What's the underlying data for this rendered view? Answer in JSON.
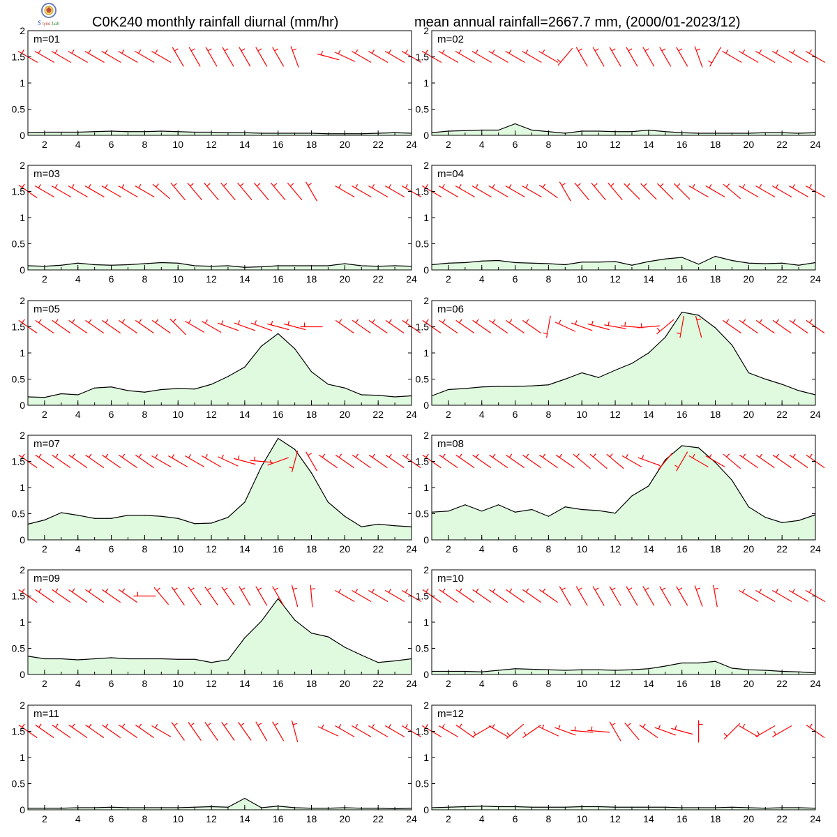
{
  "header": {
    "title_left": "C0K240 monthly rainfall diurnal (mm/hr)",
    "title_right": "mean annual rainfall=2667.7 mm, (2000/01-2023/12)",
    "logo_text": "Lab"
  },
  "colors": {
    "fill": "#e0fae0",
    "line": "#000000",
    "wind": "#ff0000"
  },
  "chart_data": [
    {
      "type": "area",
      "label": "m=01",
      "x": [
        1,
        2,
        3,
        4,
        5,
        6,
        7,
        8,
        9,
        10,
        11,
        12,
        13,
        14,
        15,
        16,
        17,
        18,
        19,
        20,
        21,
        22,
        23,
        24
      ],
      "values": [
        0.05,
        0.06,
        0.06,
        0.06,
        0.07,
        0.08,
        0.07,
        0.07,
        0.08,
        0.07,
        0.06,
        0.06,
        0.05,
        0.05,
        0.04,
        0.04,
        0.04,
        0.04,
        0.03,
        0.03,
        0.03,
        0.04,
        0.05,
        0.04
      ],
      "xlim": [
        1,
        24
      ],
      "ylim": [
        0,
        2
      ],
      "xticks": [
        2,
        4,
        6,
        8,
        10,
        12,
        14,
        16,
        18,
        20,
        22,
        24
      ],
      "yticks": [
        0,
        0.5,
        1,
        1.5,
        2
      ],
      "wind_dirs": [
        300,
        300,
        300,
        300,
        300,
        300,
        300,
        300,
        300,
        330,
        330,
        330,
        330,
        330,
        330,
        330,
        340,
        null,
        285,
        295,
        300,
        300,
        300,
        300
      ]
    },
    {
      "type": "area",
      "label": "m=02",
      "x": [
        1,
        2,
        3,
        4,
        5,
        6,
        7,
        8,
        9,
        10,
        11,
        12,
        13,
        14,
        15,
        16,
        17,
        18,
        19,
        20,
        21,
        22,
        23,
        24
      ],
      "values": [
        0.05,
        0.08,
        0.09,
        0.1,
        0.1,
        0.22,
        0.1,
        0.07,
        0.04,
        0.08,
        0.08,
        0.07,
        0.07,
        0.1,
        0.07,
        0.05,
        0.04,
        0.04,
        0.04,
        0.04,
        0.05,
        0.05,
        0.04,
        0.05
      ],
      "xlim": [
        1,
        24
      ],
      "ylim": [
        0,
        2
      ],
      "xticks": [
        2,
        4,
        6,
        8,
        10,
        12,
        14,
        16,
        18,
        20,
        22,
        24
      ],
      "yticks": [
        0,
        0.5,
        1,
        1.5,
        2
      ],
      "wind_dirs": [
        300,
        300,
        300,
        300,
        300,
        300,
        300,
        300,
        220,
        330,
        330,
        330,
        330,
        330,
        330,
        330,
        340,
        210,
        300,
        300,
        300,
        300,
        300,
        300
      ]
    },
    {
      "type": "area",
      "label": "m=03",
      "x": [
        1,
        2,
        3,
        4,
        5,
        6,
        7,
        8,
        9,
        10,
        11,
        12,
        13,
        14,
        15,
        16,
        17,
        18,
        19,
        20,
        21,
        22,
        23,
        24
      ],
      "values": [
        0.08,
        0.07,
        0.09,
        0.13,
        0.1,
        0.09,
        0.1,
        0.12,
        0.14,
        0.13,
        0.08,
        0.07,
        0.08,
        0.05,
        0.06,
        0.08,
        0.08,
        0.08,
        0.08,
        0.12,
        0.08,
        0.07,
        0.08,
        0.07
      ],
      "xlim": [
        1,
        24
      ],
      "ylim": [
        0,
        2
      ],
      "xticks": [
        2,
        4,
        6,
        8,
        10,
        12,
        14,
        16,
        18,
        20,
        22,
        24
      ],
      "yticks": [
        0,
        0.5,
        1,
        1.5,
        2
      ],
      "wind_dirs": [
        305,
        300,
        300,
        300,
        300,
        300,
        300,
        300,
        310,
        320,
        320,
        320,
        320,
        320,
        320,
        320,
        320,
        330,
        null,
        300,
        300,
        300,
        300,
        300
      ]
    },
    {
      "type": "area",
      "label": "m=04",
      "x": [
        1,
        2,
        3,
        4,
        5,
        6,
        7,
        8,
        9,
        10,
        11,
        12,
        13,
        14,
        15,
        16,
        17,
        18,
        19,
        20,
        21,
        22,
        23,
        24
      ],
      "values": [
        0.1,
        0.13,
        0.14,
        0.17,
        0.18,
        0.14,
        0.13,
        0.12,
        0.1,
        0.15,
        0.15,
        0.16,
        0.09,
        0.16,
        0.21,
        0.24,
        0.11,
        0.26,
        0.18,
        0.13,
        0.12,
        0.13,
        0.09,
        0.14
      ],
      "xlim": [
        1,
        24
      ],
      "ylim": [
        0,
        2
      ],
      "xticks": [
        2,
        4,
        6,
        8,
        10,
        12,
        14,
        16,
        18,
        20,
        22,
        24
      ],
      "yticks": [
        0,
        0.5,
        1,
        1.5,
        2
      ],
      "wind_dirs": [
        300,
        300,
        300,
        300,
        300,
        300,
        300,
        305,
        330,
        320,
        320,
        320,
        315,
        315,
        315,
        315,
        300,
        300,
        310,
        300,
        300,
        300,
        300,
        300
      ]
    },
    {
      "type": "area",
      "label": "m=05",
      "x": [
        1,
        2,
        3,
        4,
        5,
        6,
        7,
        8,
        9,
        10,
        11,
        12,
        13,
        14,
        15,
        16,
        17,
        18,
        19,
        20,
        21,
        22,
        23,
        24
      ],
      "values": [
        0.16,
        0.15,
        0.22,
        0.2,
        0.33,
        0.35,
        0.28,
        0.25,
        0.3,
        0.32,
        0.31,
        0.4,
        0.55,
        0.73,
        1.13,
        1.37,
        1.08,
        0.64,
        0.4,
        0.33,
        0.2,
        0.19,
        0.16,
        0.18
      ],
      "xlim": [
        1,
        24
      ],
      "ylim": [
        0,
        2
      ],
      "xticks": [
        2,
        4,
        6,
        8,
        10,
        12,
        14,
        16,
        18,
        20,
        22,
        24
      ],
      "yticks": [
        0,
        0.5,
        1,
        1.5,
        2
      ],
      "wind_dirs": [
        305,
        305,
        305,
        305,
        305,
        305,
        305,
        305,
        305,
        315,
        300,
        300,
        290,
        290,
        290,
        285,
        285,
        270,
        null,
        305,
        305,
        305,
        305,
        305
      ]
    },
    {
      "type": "area",
      "label": "m=06",
      "x": [
        1,
        2,
        3,
        4,
        5,
        6,
        7,
        8,
        9,
        10,
        11,
        12,
        13,
        14,
        15,
        16,
        17,
        18,
        19,
        20,
        21,
        22,
        23,
        24
      ],
      "values": [
        0.18,
        0.3,
        0.32,
        0.35,
        0.36,
        0.36,
        0.37,
        0.39,
        0.5,
        0.62,
        0.53,
        0.67,
        0.8,
        1.0,
        1.3,
        1.78,
        1.72,
        1.48,
        1.15,
        0.62,
        0.5,
        0.4,
        0.28,
        0.2
      ],
      "xlim": [
        1,
        24
      ],
      "ylim": [
        0,
        2
      ],
      "xticks": [
        2,
        4,
        6,
        8,
        10,
        12,
        14,
        16,
        18,
        20,
        22,
        24
      ],
      "yticks": [
        0,
        0.5,
        1,
        1.5,
        2
      ],
      "wind_dirs": [
        305,
        305,
        305,
        305,
        305,
        305,
        305,
        190,
        295,
        290,
        285,
        280,
        275,
        265,
        230,
        190,
        345,
        null,
        305,
        305,
        305,
        305,
        305,
        305
      ]
    },
    {
      "type": "area",
      "label": "m=07",
      "x": [
        1,
        2,
        3,
        4,
        5,
        6,
        7,
        8,
        9,
        10,
        11,
        12,
        13,
        14,
        15,
        16,
        17,
        18,
        19,
        20,
        21,
        22,
        23,
        24
      ],
      "values": [
        0.3,
        0.38,
        0.52,
        0.47,
        0.41,
        0.41,
        0.47,
        0.47,
        0.45,
        0.41,
        0.31,
        0.32,
        0.43,
        0.72,
        1.4,
        1.94,
        1.73,
        1.28,
        0.72,
        0.45,
        0.25,
        0.3,
        0.27,
        0.25
      ],
      "xlim": [
        1,
        24
      ],
      "ylim": [
        0,
        2
      ],
      "xticks": [
        2,
        4,
        6,
        8,
        10,
        12,
        14,
        16,
        18,
        20,
        22,
        24
      ],
      "yticks": [
        0,
        0.5,
        1,
        1.5,
        2
      ],
      "wind_dirs": [
        305,
        305,
        305,
        305,
        305,
        305,
        305,
        305,
        300,
        300,
        300,
        300,
        295,
        285,
        275,
        250,
        195,
        330,
        305,
        305,
        305,
        305,
        305,
        305
      ]
    },
    {
      "type": "area",
      "label": "m=08",
      "x": [
        1,
        2,
        3,
        4,
        5,
        6,
        7,
        8,
        9,
        10,
        11,
        12,
        13,
        14,
        15,
        16,
        17,
        18,
        19,
        20,
        21,
        22,
        23,
        24
      ],
      "values": [
        0.53,
        0.55,
        0.67,
        0.55,
        0.67,
        0.53,
        0.58,
        0.45,
        0.63,
        0.58,
        0.56,
        0.51,
        0.84,
        1.03,
        1.53,
        1.8,
        1.76,
        1.48,
        1.14,
        0.63,
        0.43,
        0.33,
        0.37,
        0.48
      ],
      "xlim": [
        1,
        24
      ],
      "ylim": [
        0,
        2
      ],
      "xticks": [
        2,
        4,
        6,
        8,
        10,
        12,
        14,
        16,
        18,
        20,
        22,
        24
      ],
      "yticks": [
        0,
        0.5,
        1,
        1.5,
        2
      ],
      "wind_dirs": [
        305,
        305,
        305,
        305,
        305,
        305,
        305,
        305,
        305,
        310,
        310,
        310,
        300,
        290,
        220,
        210,
        300,
        300,
        310,
        305,
        305,
        305,
        305,
        305
      ]
    },
    {
      "type": "area",
      "label": "m=09",
      "x": [
        1,
        2,
        3,
        4,
        5,
        6,
        7,
        8,
        9,
        10,
        11,
        12,
        13,
        14,
        15,
        16,
        17,
        18,
        19,
        20,
        21,
        22,
        23,
        24
      ],
      "values": [
        0.35,
        0.3,
        0.3,
        0.28,
        0.3,
        0.32,
        0.3,
        0.3,
        0.3,
        0.29,
        0.29,
        0.23,
        0.28,
        0.7,
        1.02,
        1.45,
        1.04,
        0.79,
        0.72,
        0.52,
        0.37,
        0.23,
        0.26,
        0.3
      ],
      "xlim": [
        1,
        24
      ],
      "ylim": [
        0,
        2
      ],
      "xticks": [
        2,
        4,
        6,
        8,
        10,
        12,
        14,
        16,
        18,
        20,
        22,
        24
      ],
      "yticks": [
        0,
        0.5,
        1,
        1.5,
        2
      ],
      "wind_dirs": [
        305,
        305,
        305,
        305,
        305,
        305,
        305,
        270,
        320,
        325,
        325,
        325,
        325,
        330,
        330,
        330,
        345,
        355,
        null,
        300,
        300,
        300,
        300,
        300
      ]
    },
    {
      "type": "area",
      "label": "m=10",
      "x": [
        1,
        2,
        3,
        4,
        5,
        6,
        7,
        8,
        9,
        10,
        11,
        12,
        13,
        14,
        15,
        16,
        17,
        18,
        19,
        20,
        21,
        22,
        23,
        24
      ],
      "values": [
        0.06,
        0.06,
        0.06,
        0.05,
        0.08,
        0.11,
        0.1,
        0.09,
        0.08,
        0.09,
        0.09,
        0.08,
        0.09,
        0.11,
        0.16,
        0.22,
        0.22,
        0.25,
        0.12,
        0.09,
        0.08,
        0.06,
        0.05,
        0.03
      ],
      "xlim": [
        1,
        24
      ],
      "ylim": [
        0,
        2
      ],
      "xticks": [
        2,
        4,
        6,
        8,
        10,
        12,
        14,
        16,
        18,
        20,
        22,
        24
      ],
      "yticks": [
        0,
        0.5,
        1,
        1.5,
        2
      ],
      "wind_dirs": [
        305,
        305,
        305,
        305,
        305,
        305,
        305,
        305,
        330,
        330,
        330,
        330,
        330,
        330,
        330,
        330,
        340,
        350,
        null,
        300,
        300,
        300,
        300,
        300
      ]
    },
    {
      "type": "area",
      "label": "m=11",
      "x": [
        1,
        2,
        3,
        4,
        5,
        6,
        7,
        8,
        9,
        10,
        11,
        12,
        13,
        14,
        15,
        16,
        17,
        18,
        19,
        20,
        21,
        22,
        23,
        24
      ],
      "values": [
        0.03,
        0.03,
        0.03,
        0.04,
        0.04,
        0.05,
        0.04,
        0.04,
        0.04,
        0.04,
        0.05,
        0.06,
        0.05,
        0.22,
        0.04,
        0.07,
        0.04,
        0.03,
        0.03,
        0.04,
        0.03,
        0.03,
        0.02,
        0.03
      ],
      "xlim": [
        1,
        24
      ],
      "ylim": [
        0,
        2
      ],
      "xticks": [
        2,
        4,
        6,
        8,
        10,
        12,
        14,
        16,
        18,
        20,
        22,
        24
      ],
      "yticks": [
        0,
        0.5,
        1,
        1.5,
        2
      ],
      "wind_dirs": [
        305,
        305,
        305,
        305,
        305,
        305,
        305,
        305,
        300,
        325,
        325,
        325,
        325,
        325,
        330,
        330,
        345,
        null,
        295,
        300,
        300,
        300,
        300,
        300
      ]
    },
    {
      "type": "area",
      "label": "m=12",
      "x": [
        1,
        2,
        3,
        4,
        5,
        6,
        7,
        8,
        9,
        10,
        11,
        12,
        13,
        14,
        15,
        16,
        17,
        18,
        19,
        20,
        21,
        22,
        23,
        24
      ],
      "values": [
        0.04,
        0.05,
        0.06,
        0.07,
        0.06,
        0.06,
        0.05,
        0.05,
        0.05,
        0.06,
        0.06,
        0.05,
        0.05,
        0.05,
        0.05,
        0.04,
        0.04,
        0.04,
        0.05,
        0.04,
        0.03,
        0.04,
        0.04,
        0.03
      ],
      "xlim": [
        1,
        24
      ],
      "ylim": [
        0,
        2
      ],
      "xticks": [
        2,
        4,
        6,
        8,
        10,
        12,
        14,
        16,
        18,
        20,
        22,
        24
      ],
      "yticks": [
        0,
        0.5,
        1,
        1.5,
        2
      ],
      "wind_dirs": [
        300,
        300,
        305,
        240,
        300,
        230,
        235,
        295,
        290,
        275,
        275,
        330,
        320,
        305,
        290,
        285,
        0,
        null,
        225,
        300,
        240,
        240,
        null,
        305
      ]
    }
  ]
}
